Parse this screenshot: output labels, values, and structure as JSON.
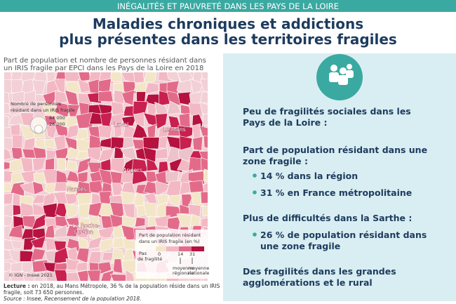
{
  "header": {
    "banner": "INÉGALITÉS ET PAUVRETÉ DANS LES PAYS DE LA LOIRE",
    "title_lines": [
      "Maladies chroniques et addictions",
      "plus présentes dans les territoires fragiles"
    ]
  },
  "map": {
    "caption_lines": [
      "Part de population et nombre de personnes résidant dans",
      "un IRIS fragile par EPCI dans les Pays de la Loire en 2018"
    ],
    "bubble_legend": {
      "title_lines": [
        "Nombre de personnes",
        "résidant dans un IRIS fragile"
      ],
      "sizes": [
        "84 000",
        "28 000"
      ]
    },
    "cities": [
      "Laval",
      "Le Mans",
      "Angers",
      "Nantes",
      "La Roche-",
      "sur-Yon"
    ],
    "color_legend": {
      "title_lines": [
        "Part de population résidant",
        "dans un IRIS fragile (en %)"
      ],
      "no_fragility_lines": [
        "Pas",
        "de fragilité"
      ],
      "ticks": [
        "0",
        "14",
        "31"
      ],
      "regional": [
        "moyenne",
        "régionale"
      ],
      "national": [
        "moyenne",
        "nationale"
      ]
    },
    "copyright": "© IGN - Insee 2021",
    "reading_label": "Lecture :",
    "reading_lines": [
      " en 2018, au Mans Métropole, 36 % de la population réside dans un IRIS",
      "fragile, soit 73 650 personnes."
    ],
    "source": "Source : Insee, Recensement de la population 2018."
  },
  "panel": {
    "heading1_lines": [
      "Peu de fragilités sociales dans les",
      "Pays de la Loire :"
    ],
    "heading2_lines": [
      "Part de population résidant dans une",
      "zone fragile :"
    ],
    "bullets1": [
      "14 % dans la région",
      "31 % en France métropolitaine"
    ],
    "heading3": "Plus de difficultés dans la Sarthe :",
    "bullets2_lines": [
      "26 % de population résidant dans",
      "une zone fragile"
    ],
    "heading4_lines": [
      "Des fragilités dans les grandes",
      "agglomérations et le rural"
    ]
  }
}
